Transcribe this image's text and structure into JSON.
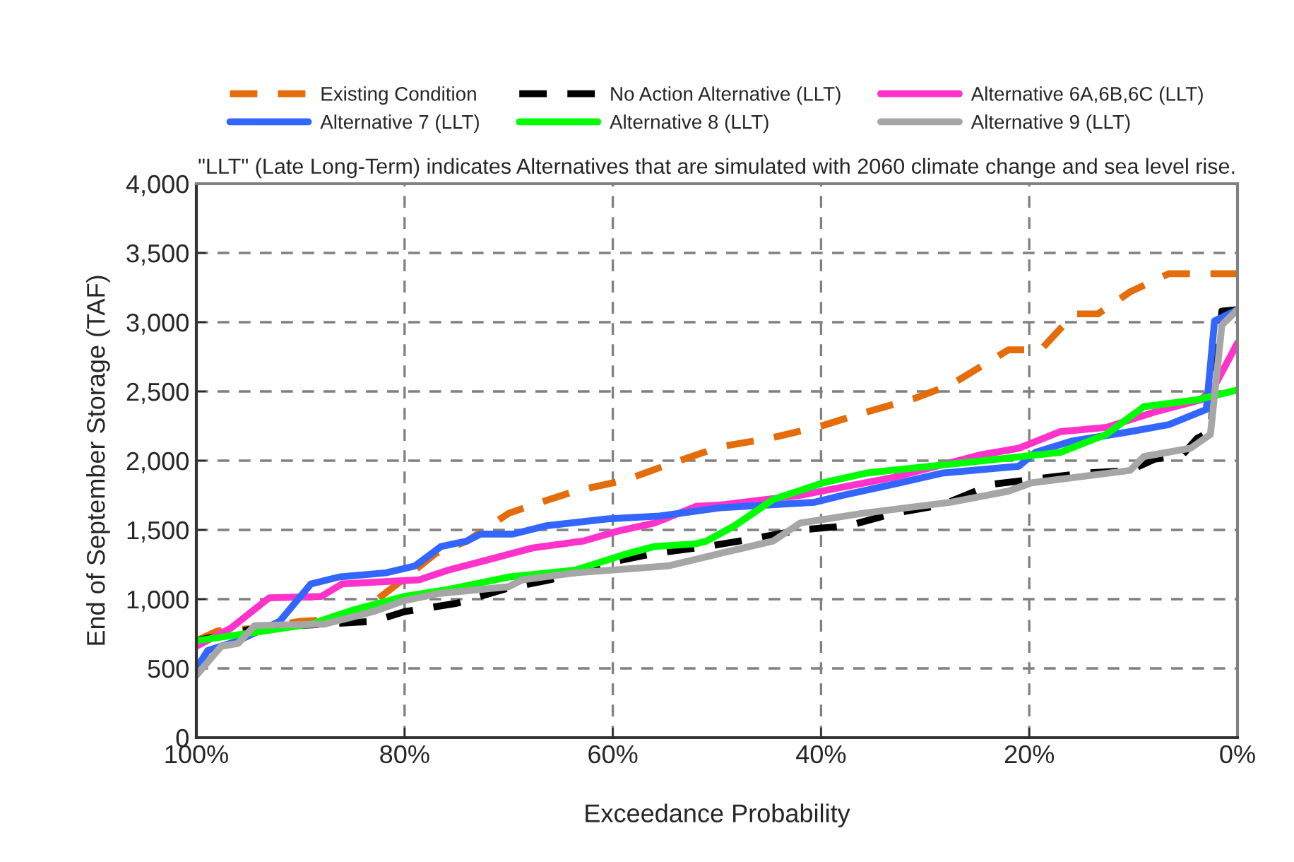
{
  "chart_data": {
    "type": "line",
    "xlabel": "Exceedance Probability",
    "ylabel": "End of September Storage (TAF)",
    "annotations": [
      "\"LLT\" (Late Long-Term) indicates Alternatives that are simulated with 2060 climate change and sea level rise."
    ],
    "xlim": [
      100,
      0
    ],
    "xticks": [
      {
        "value": 100,
        "label": "100%"
      },
      {
        "value": 80,
        "label": "80%"
      },
      {
        "value": 60,
        "label": "60%"
      },
      {
        "value": 40,
        "label": "40%"
      },
      {
        "value": 20,
        "label": "20%"
      },
      {
        "value": 0,
        "label": "0%"
      }
    ],
    "ylim": [
      0,
      4000
    ],
    "yticks": [
      0,
      500,
      {
        "value": 1000,
        "label": "1,000"
      },
      {
        "value": 1500,
        "label": "1,500"
      },
      {
        "value": 2000,
        "label": "2,000"
      },
      {
        "value": 2500,
        "label": "2,500"
      },
      {
        "value": 3000,
        "label": "3,000"
      },
      {
        "value": 3500,
        "label": "3,500"
      },
      {
        "value": 4000,
        "label": "4,000"
      }
    ],
    "grid": true,
    "legend": "top",
    "marker": "none",
    "series": [
      {
        "name": "Existing Condition",
        "color": "#e46c0a",
        "line_style": "dashed",
        "x": [
          100,
          98,
          94,
          90,
          85,
          80,
          77,
          74,
          70,
          67.7,
          63.6,
          58.8,
          54,
          49.7,
          45,
          40,
          35.7,
          31,
          27.5,
          22,
          18.9,
          15.7,
          13.4,
          10.3,
          6.6,
          0
        ],
        "values": [
          700,
          770,
          790,
          840,
          860,
          1150,
          1330,
          1420,
          1620,
          1680,
          1780,
          1860,
          1990,
          2100,
          2160,
          2250,
          2350,
          2450,
          2550,
          2800,
          2800,
          3060,
          3060,
          3220,
          3350,
          3350
        ]
      },
      {
        "name": "No Action Alternative (LLT)",
        "color": "#000000",
        "line_style": "dashed",
        "x": [
          100,
          95,
          90,
          83,
          80,
          75,
          70,
          66,
          60,
          56,
          51,
          47,
          42,
          37.4,
          33,
          28.4,
          23.5,
          14.8,
          10.3,
          8,
          5.3,
          3.9,
          2.6,
          1.5,
          0
        ],
        "values": [
          700,
          780,
          810,
          840,
          910,
          970,
          1080,
          1140,
          1270,
          1330,
          1380,
          1430,
          1500,
          1530,
          1620,
          1680,
          1830,
          1910,
          1930,
          2010,
          2040,
          2160,
          2210,
          3080,
          3090
        ]
      },
      {
        "name": "Alternative 6A,6B,6C (LLT)",
        "color": "#ff33cc",
        "line_style": "solid",
        "x": [
          100,
          96.7,
          93,
          88,
          86,
          78.6,
          75.8,
          72.7,
          67.7,
          62.8,
          59.6,
          56,
          52,
          49.7,
          42,
          33,
          24.8,
          21,
          17,
          12.6,
          8,
          3.5,
          2.2,
          0
        ],
        "values": [
          660,
          790,
          1010,
          1020,
          1110,
          1140,
          1210,
          1270,
          1370,
          1420,
          1490,
          1550,
          1670,
          1680,
          1750,
          1880,
          2040,
          2090,
          2210,
          2240,
          2350,
          2440,
          2540,
          2850
        ]
      },
      {
        "name": "Alternative 7 (LLT)",
        "color": "#3366ff",
        "line_style": "solid",
        "x": [
          100,
          98.9,
          96,
          92,
          89,
          86.3,
          81.8,
          79,
          76.5,
          74,
          72.7,
          69.6,
          66.4,
          60.5,
          55.5,
          49.7,
          40.6,
          37.9,
          33,
          28.4,
          21,
          19.4,
          16,
          10.3,
          6.6,
          3,
          2.2,
          0
        ],
        "values": [
          500,
          630,
          700,
          840,
          1110,
          1160,
          1190,
          1240,
          1380,
          1420,
          1470,
          1470,
          1530,
          1580,
          1600,
          1660,
          1700,
          1750,
          1830,
          1910,
          1960,
          2060,
          2140,
          2210,
          2260,
          2370,
          3010,
          3090
        ]
      },
      {
        "name": "Alternative 8 (LLT)",
        "color": "#00ff00",
        "line_style": "solid",
        "x": [
          100,
          94.4,
          89,
          85,
          80,
          75.8,
          70,
          63.6,
          59,
          56,
          52,
          51,
          48.3,
          44.6,
          39.8,
          35.7,
          32,
          25.6,
          17,
          12.6,
          9,
          3.9,
          0
        ],
        "values": [
          700,
          760,
          820,
          920,
          1020,
          1070,
          1160,
          1210,
          1320,
          1380,
          1400,
          1420,
          1530,
          1720,
          1840,
          1910,
          1940,
          1990,
          2060,
          2190,
          2390,
          2440,
          2510
        ]
      },
      {
        "name": "Alternative 9 (LLT)",
        "color": "#a6a6a6",
        "line_style": "solid",
        "x": [
          100,
          97.6,
          96,
          94.4,
          87.7,
          83,
          80,
          76.8,
          70,
          68.7,
          63.6,
          54.7,
          49.7,
          44.6,
          42,
          36,
          27.5,
          22,
          19.8,
          10.3,
          9,
          4.5,
          2.6,
          1.5,
          0
        ],
        "values": [
          450,
          660,
          680,
          810,
          820,
          910,
          990,
          1040,
          1090,
          1140,
          1190,
          1240,
          1330,
          1420,
          1550,
          1620,
          1700,
          1780,
          1840,
          1930,
          2030,
          2090,
          2190,
          2980,
          3090
        ]
      }
    ]
  }
}
